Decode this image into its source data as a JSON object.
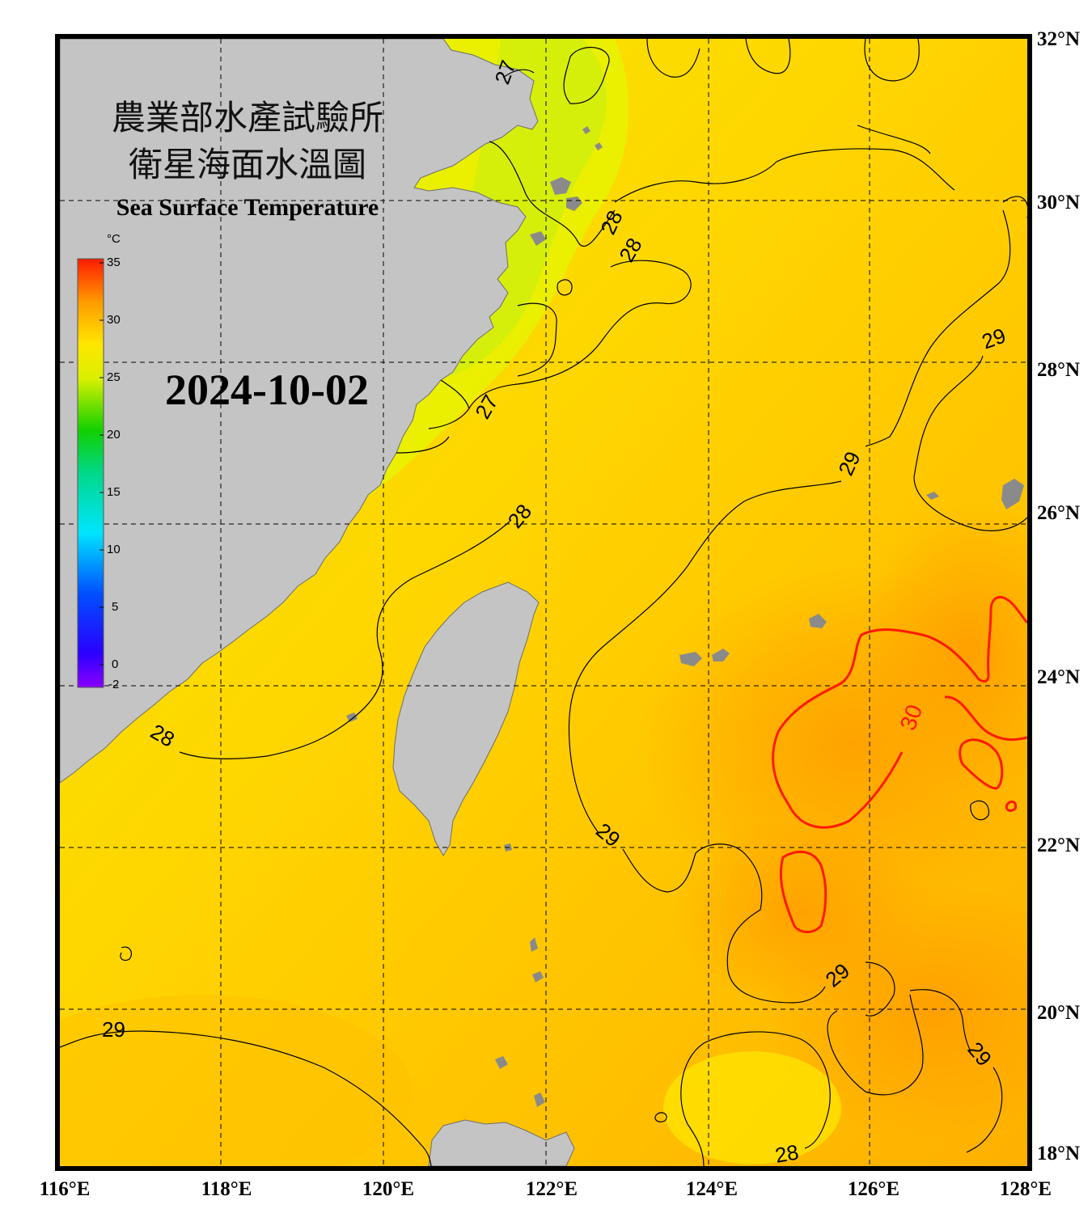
{
  "title": {
    "line1": "農業部水產試驗所",
    "line2": "衛星海面水溫圖",
    "english": "Sea Surface Temperature"
  },
  "date": "2024-10-02",
  "colorbar": {
    "unit": "°C",
    "min": -2,
    "max": 35,
    "ticks": [
      "35",
      "30",
      "25",
      "20",
      "15",
      "10",
      "5",
      "0",
      "-2"
    ]
  },
  "axes": {
    "lon_labels": [
      "116°E",
      "118°E",
      "120°E",
      "122°E",
      "124°E",
      "126°E",
      "128°E"
    ],
    "lat_labels": [
      "32°N",
      "30°N",
      "28°N",
      "26°N",
      "24°N",
      "22°N",
      "20°N",
      "18°N"
    ],
    "lon_range": [
      116,
      128
    ],
    "lat_range": [
      18,
      32
    ],
    "grid": "dashed"
  },
  "contours": {
    "labels": [
      "27",
      "28",
      "28",
      "27",
      "28",
      "28",
      "29",
      "29",
      "29",
      "29",
      "29",
      "29",
      "28",
      "30"
    ],
    "levels": [
      27,
      28,
      29,
      30
    ],
    "highlight_color": "#ff1a00"
  },
  "colors": {
    "land": "#c4c4c4",
    "frame": "#000000"
  }
}
